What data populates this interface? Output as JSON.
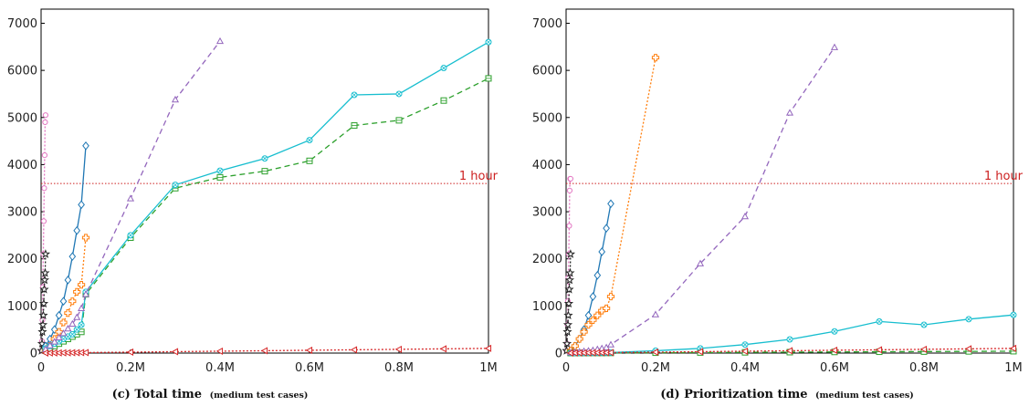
{
  "chart_data": [
    {
      "type": "line",
      "caption": "(c) Total time",
      "caption_note": "(medium test cases)",
      "xlim": [
        0,
        1000000
      ],
      "ylim": [
        0,
        7300
      ],
      "x_ticks": [
        0,
        200000,
        400000,
        600000,
        800000,
        1000000
      ],
      "x_tick_labels": [
        "0",
        "0.2M",
        "0.4M",
        "0.6M",
        "0.8M",
        "1M"
      ],
      "y_ticks": [
        0,
        1000,
        2000,
        3000,
        4000,
        5000,
        6000,
        7000
      ],
      "y_tick_labels": [
        "0",
        "1000",
        "2000",
        "3000",
        "4000",
        "5000",
        "6000",
        "7000"
      ],
      "reference_line": {
        "y": 3600,
        "label": "1 hour",
        "color": "#cc2020"
      },
      "series": [
        {
          "color": "#e377c2",
          "dash": "2,2",
          "marker": "circle",
          "x": [
            1000,
            2000,
            3000,
            4000,
            5000,
            6000,
            7000,
            8000,
            9000,
            10000
          ],
          "y": [
            50,
            250,
            700,
            1400,
            2100,
            2800,
            3500,
            4200,
            4900,
            5050
          ]
        },
        {
          "color": "#222222",
          "dash": "2,2",
          "marker": "star",
          "x": [
            1000,
            2000,
            3000,
            4000,
            5000,
            6000,
            7000,
            8000,
            9000,
            10000
          ],
          "y": [
            50,
            200,
            450,
            600,
            800,
            1050,
            1350,
            1550,
            1700,
            2100
          ]
        },
        {
          "color": "#1f77b4",
          "dash": "",
          "marker": "diamond",
          "x": [
            10000,
            20000,
            30000,
            40000,
            50000,
            60000,
            70000,
            80000,
            90000,
            100000
          ],
          "y": [
            150,
            300,
            500,
            800,
            1100,
            1550,
            2050,
            2600,
            3150,
            4400
          ]
        },
        {
          "color": "#ff7f0e",
          "dash": "2,2",
          "marker": "cross",
          "x": [
            10000,
            20000,
            30000,
            40000,
            50000,
            60000,
            70000,
            80000,
            90000,
            100000
          ],
          "y": [
            50,
            150,
            300,
            450,
            650,
            850,
            1100,
            1300,
            1450,
            2450
          ]
        },
        {
          "color": "#2ca02c",
          "dash": "6,4",
          "marker": "square",
          "x": [
            10000,
            20000,
            30000,
            40000,
            50000,
            60000,
            70000,
            80000,
            90000,
            100000,
            200000,
            300000,
            400000,
            500000,
            600000,
            700000,
            800000,
            900000,
            1000000
          ],
          "y": [
            50,
            100,
            150,
            200,
            250,
            300,
            350,
            400,
            450,
            1250,
            2450,
            3500,
            3730,
            3860,
            4080,
            4830,
            4940,
            5360,
            5830
          ]
        },
        {
          "color": "#17becf",
          "dash": "",
          "marker": "xcircle",
          "x": [
            10000,
            20000,
            30000,
            40000,
            50000,
            60000,
            70000,
            80000,
            90000,
            100000,
            200000,
            300000,
            400000,
            500000,
            600000,
            700000,
            800000,
            900000,
            1000000
          ],
          "y": [
            100,
            150,
            200,
            250,
            300,
            350,
            400,
            500,
            600,
            1300,
            2500,
            3570,
            3870,
            4130,
            4520,
            5480,
            5500,
            6050,
            6600
          ]
        },
        {
          "color": "#9467bd",
          "dash": "6,4",
          "marker": "triangle-up",
          "x": [
            10000,
            20000,
            30000,
            40000,
            50000,
            60000,
            70000,
            80000,
            90000,
            100000,
            200000,
            300000,
            400000
          ],
          "y": [
            80,
            160,
            240,
            330,
            420,
            520,
            620,
            760,
            950,
            1250,
            3280,
            5380,
            6620
          ]
        },
        {
          "color": "#d62728",
          "dash": "2,2",
          "marker": "triangle-left",
          "x": [
            10000,
            20000,
            30000,
            40000,
            50000,
            60000,
            70000,
            80000,
            90000,
            100000,
            200000,
            300000,
            400000,
            500000,
            600000,
            700000,
            800000,
            900000,
            1000000
          ],
          "y": [
            2,
            3,
            4,
            5,
            6,
            7,
            8,
            9,
            10,
            11,
            20,
            30,
            40,
            50,
            60,
            70,
            80,
            90,
            100
          ]
        }
      ]
    },
    {
      "type": "line",
      "caption": "(d) Prioritization time",
      "caption_note": "(medium test cases)",
      "xlim": [
        0,
        1000000
      ],
      "ylim": [
        0,
        7300
      ],
      "x_ticks": [
        0,
        200000,
        400000,
        600000,
        800000,
        1000000
      ],
      "x_tick_labels": [
        "0",
        "0.2M",
        "0.4M",
        "0.6M",
        "0.8M",
        "1M"
      ],
      "y_ticks": [
        0,
        1000,
        2000,
        3000,
        4000,
        5000,
        6000,
        7000
      ],
      "y_tick_labels": [
        "0",
        "1000",
        "2000",
        "3000",
        "4000",
        "5000",
        "6000",
        "7000"
      ],
      "reference_line": {
        "y": 3600,
        "label": "1 hour",
        "color": "#cc2020"
      },
      "series": [
        {
          "color": "#e377c2",
          "dash": "2,2",
          "marker": "circle",
          "x": [
            1000,
            2000,
            3000,
            4000,
            5000,
            6000,
            7000,
            8000,
            9000,
            10000
          ],
          "y": [
            50,
            200,
            600,
            1100,
            1600,
            2100,
            2700,
            3450,
            3700,
            3700
          ]
        },
        {
          "color": "#222222",
          "dash": "2,2",
          "marker": "star",
          "x": [
            1000,
            2000,
            3000,
            4000,
            5000,
            6000,
            7000,
            8000,
            9000,
            10000
          ],
          "y": [
            50,
            200,
            450,
            600,
            800,
            1050,
            1350,
            1550,
            1700,
            2100
          ]
        },
        {
          "color": "#1f77b4",
          "dash": "",
          "marker": "diamond",
          "x": [
            10000,
            20000,
            30000,
            40000,
            50000,
            60000,
            70000,
            80000,
            90000,
            100000
          ],
          "y": [
            50,
            150,
            300,
            500,
            800,
            1200,
            1650,
            2150,
            2650,
            3170
          ]
        },
        {
          "color": "#ff7f0e",
          "dash": "2,2",
          "marker": "cross",
          "x": [
            10000,
            20000,
            30000,
            40000,
            50000,
            60000,
            70000,
            80000,
            90000,
            100000,
            200000
          ],
          "y": [
            50,
            150,
            300,
            450,
            600,
            700,
            800,
            900,
            950,
            1200,
            6270
          ]
        },
        {
          "color": "#2ca02c",
          "dash": "6,4",
          "marker": "square",
          "x": [
            10000,
            20000,
            30000,
            40000,
            50000,
            60000,
            70000,
            80000,
            90000,
            100000,
            200000,
            300000,
            400000,
            500000,
            600000,
            700000,
            800000,
            900000,
            1000000
          ],
          "y": [
            1,
            1,
            2,
            2,
            2,
            3,
            3,
            3,
            4,
            4,
            8,
            12,
            16,
            20,
            24,
            28,
            32,
            36,
            40
          ]
        },
        {
          "color": "#17becf",
          "dash": "",
          "marker": "xcircle",
          "x": [
            10000,
            20000,
            30000,
            40000,
            50000,
            60000,
            70000,
            80000,
            90000,
            100000,
            200000,
            300000,
            400000,
            500000,
            600000,
            700000,
            800000,
            900000,
            1000000
          ],
          "y": [
            2,
            3,
            4,
            5,
            6,
            7,
            8,
            9,
            10,
            12,
            50,
            100,
            180,
            290,
            460,
            670,
            600,
            720,
            810
          ]
        },
        {
          "color": "#9467bd",
          "dash": "6,4",
          "marker": "triangle-up",
          "x": [
            10000,
            20000,
            30000,
            40000,
            50000,
            60000,
            70000,
            80000,
            90000,
            100000,
            200000,
            300000,
            400000,
            500000,
            600000
          ],
          "y": [
            10,
            20,
            30,
            40,
            50,
            60,
            80,
            100,
            120,
            180,
            820,
            1900,
            2900,
            5100,
            6490
          ]
        },
        {
          "color": "#d62728",
          "dash": "2,2",
          "marker": "triangle-left",
          "x": [
            10000,
            20000,
            30000,
            40000,
            50000,
            60000,
            70000,
            80000,
            90000,
            100000,
            200000,
            300000,
            400000,
            500000,
            600000,
            700000,
            800000,
            900000,
            1000000
          ],
          "y": [
            2,
            3,
            4,
            5,
            6,
            7,
            8,
            9,
            10,
            11,
            20,
            30,
            40,
            50,
            60,
            70,
            80,
            90,
            100
          ]
        }
      ]
    }
  ]
}
